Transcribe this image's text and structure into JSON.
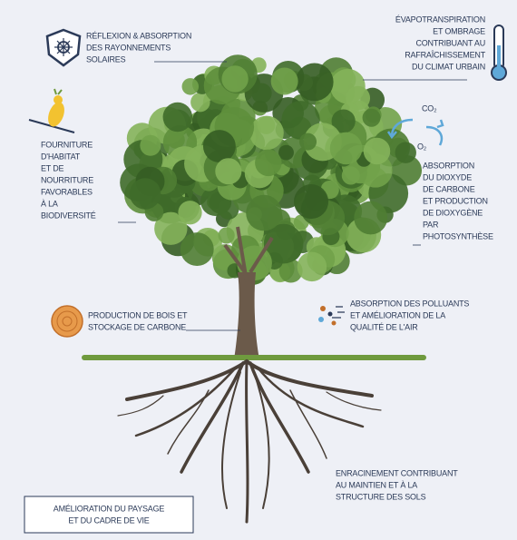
{
  "callouts": [
    {
      "lines": [
        "RÉFLEXION & ABSORPTION",
        "DES RAYONNEMENTS",
        "SOLAIRES"
      ]
    },
    {
      "lines": [
        "ÉVAPOTRANSPIRATION",
        "ET OMBRAGE",
        "CONTRIBUANT AU",
        "RAFRAÎCHISSEMENT",
        "DU CLIMAT URBAIN"
      ]
    },
    {
      "lines": [
        "FOURNITURE",
        "D'HABITAT",
        "ET DE",
        "NOURRITURE",
        "FAVORABLES",
        "À LA",
        "BIODIVERSITÉ"
      ]
    },
    {
      "lines": [
        "ABSORPTION",
        "DU DIOXYDE",
        "DE CARBONE",
        "ET PRODUCTION",
        "DE DIOXYGÈNE",
        "PAR",
        "PHOTOSYNTHÈSE"
      ]
    },
    {
      "lines": [
        "PRODUCTION DE BOIS ET",
        "STOCKAGE DE CARBONE"
      ]
    },
    {
      "lines": [
        "ABSORPTION DES POLLUANTS",
        "ET AMÉLIORATION DE LA",
        "QUALITÉ DE L'AIR"
      ]
    },
    {
      "lines": [
        "ENRACINEMENT CONTRIBUANT",
        "AU MAINTIEN ET À LA",
        "STRUCTURE DES SOLS"
      ]
    }
  ],
  "co2_cycle": {
    "co2": "CO₂",
    "o2": "O₂"
  },
  "footer_box": {
    "lines": [
      "AMÉLIORATION DU PAYSAGE",
      "ET DU CADRE DE VIE"
    ]
  }
}
